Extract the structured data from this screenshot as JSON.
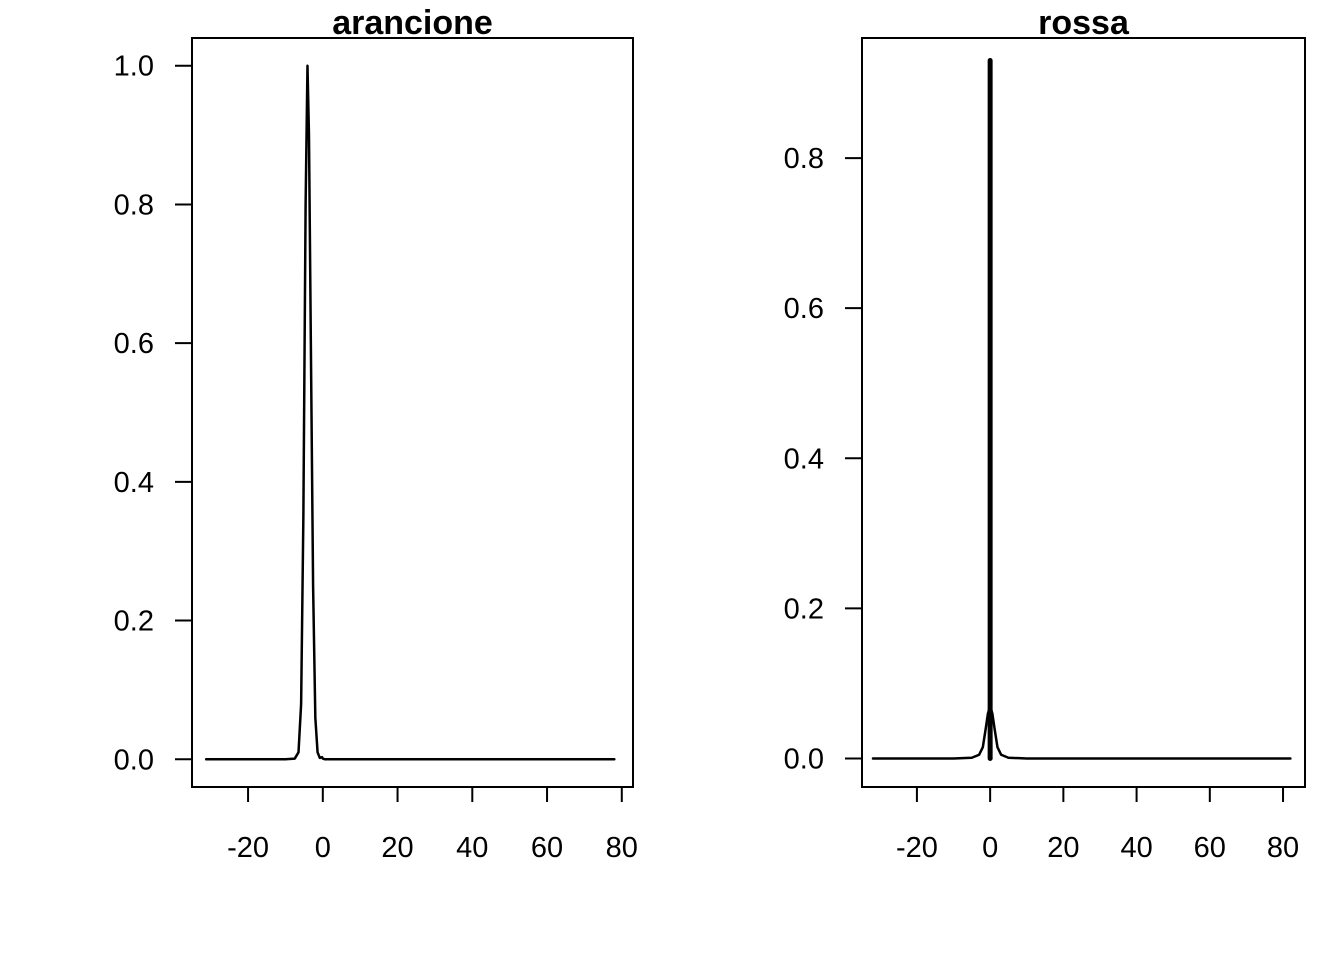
{
  "chart_data": [
    {
      "type": "line",
      "title": "arancione",
      "xlabel": "",
      "ylabel": "",
      "xlim": [
        -35,
        83
      ],
      "ylim": [
        -0.04,
        1.04
      ],
      "x_ticks": [
        -20,
        0,
        20,
        40,
        60,
        80
      ],
      "y_ticks": [
        0.0,
        0.2,
        0.4,
        0.6,
        0.8,
        1.0
      ],
      "x_tick_labels": [
        "-20",
        "0",
        "20",
        "40",
        "60",
        "80"
      ],
      "y_tick_labels": [
        "0.0",
        "0.2",
        "0.4",
        "0.6",
        "0.8",
        "1.0"
      ],
      "grid": false,
      "color": "#000000",
      "line_width": 2.5,
      "series": [
        {
          "x": [
            -31.2,
            -20,
            -10,
            -7.5,
            -6.5,
            -5.8,
            -5.2,
            -4.6,
            -4.1,
            -3.7,
            -3.2,
            -2.6,
            -2,
            -1.4,
            -0.8,
            -0.2,
            0,
            0.5,
            10,
            30,
            50,
            70,
            78
          ],
          "y": [
            0,
            0,
            0,
            0.001,
            0.01,
            0.08,
            0.35,
            0.8,
            1.0,
            0.9,
            0.6,
            0.25,
            0.06,
            0.01,
            0.002,
            0.003,
            0.001,
            0,
            0,
            0,
            0,
            0,
            0
          ]
        }
      ]
    },
    {
      "type": "line",
      "title": "rossa",
      "xlabel": "",
      "ylabel": "",
      "xlim": [
        -35,
        86
      ],
      "ylim": [
        -0.038,
        0.96
      ],
      "x_ticks": [
        -20,
        0,
        20,
        40,
        60,
        80
      ],
      "y_ticks": [
        0.0,
        0.2,
        0.4,
        0.6,
        0.8
      ],
      "x_tick_labels": [
        "-20",
        "0",
        "20",
        "40",
        "60",
        "80"
      ],
      "y_tick_labels": [
        "0.0",
        "0.2",
        "0.4",
        "0.6",
        "0.8"
      ],
      "grid": false,
      "color": "#000000",
      "line_width": 2.5,
      "series": [
        {
          "x": [
            -32,
            -20,
            -10,
            -5,
            -3,
            -2,
            -1.2,
            -0.6,
            -0.3,
            0.3,
            0.6,
            1.2,
            2,
            3,
            5,
            10,
            30,
            50,
            70,
            82
          ],
          "y": [
            0,
            0,
            0,
            0.001,
            0.005,
            0.015,
            0.04,
            0.06,
            0.065,
            0.065,
            0.06,
            0.04,
            0.015,
            0.005,
            0.001,
            0,
            0,
            0,
            0,
            0
          ]
        },
        {
          "x": [
            0,
            0,
            0,
            0,
            0,
            0,
            0,
            0
          ],
          "y": [
            0,
            0.93,
            0,
            0.92,
            0.001,
            0.93,
            0.0,
            0.925
          ]
        }
      ]
    }
  ]
}
